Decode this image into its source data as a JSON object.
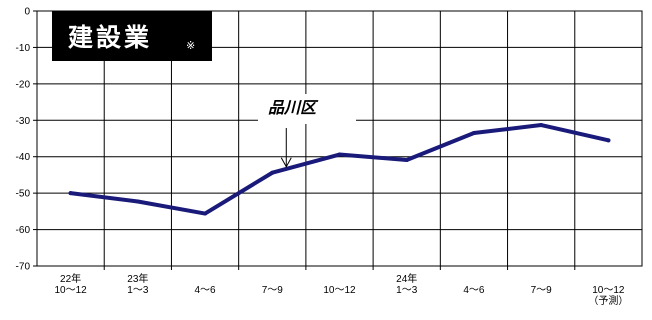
{
  "chart_data": {
    "type": "line",
    "title": "建設業",
    "title_note": "※",
    "annotation": "品川区",
    "annotation_target_index": 3,
    "ylim": [
      -70,
      0
    ],
    "yticks": [
      0,
      -10,
      -20,
      -30,
      -40,
      -50,
      -60,
      -70
    ],
    "grid": true,
    "line_color": "#1a1a7a",
    "categories": [
      [
        "22年",
        "10～12"
      ],
      [
        "23年",
        "1～3"
      ],
      [
        "",
        "4～6"
      ],
      [
        "",
        "7～9"
      ],
      [
        "",
        "10～12"
      ],
      [
        "24年",
        "1～3"
      ],
      [
        "",
        "4～6"
      ],
      [
        "",
        "7～9"
      ],
      [
        "",
        "10～12",
        "（予測）"
      ]
    ],
    "series": [
      {
        "values": [
          -50.0,
          -52.3,
          -55.6,
          -44.4,
          -39.4,
          -40.9,
          -33.5,
          -31.3,
          -35.5
        ]
      }
    ]
  }
}
